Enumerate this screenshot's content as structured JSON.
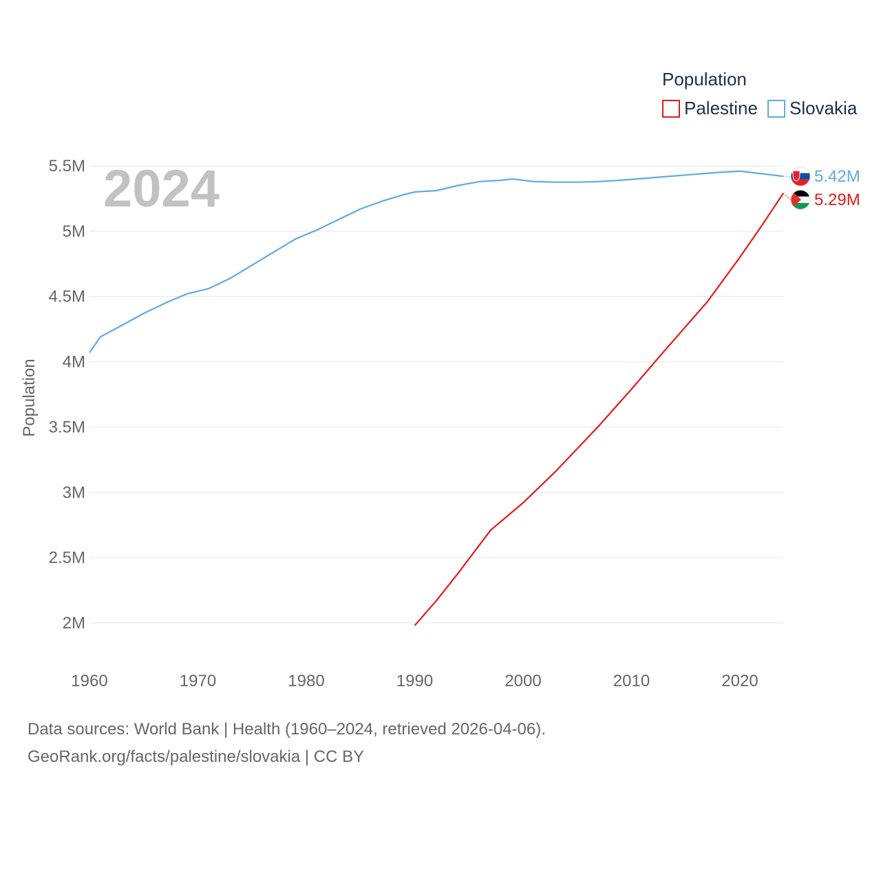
{
  "chart_data": {
    "type": "line",
    "ylabel": "Population",
    "legend": {
      "title": "Population",
      "placement": "top-right"
    },
    "year_label": "2024",
    "ylim": [
      1750000,
      5600000
    ],
    "xlim": [
      1960,
      2024
    ],
    "y_ticks": [
      {
        "value": 2000000,
        "label": "2M"
      },
      {
        "value": 2500000,
        "label": "2.5M"
      },
      {
        "value": 3000000,
        "label": "3M"
      },
      {
        "value": 3500000,
        "label": "3.5M"
      },
      {
        "value": 4000000,
        "label": "4M"
      },
      {
        "value": 4500000,
        "label": "4.5M"
      },
      {
        "value": 5000000,
        "label": "5M"
      },
      {
        "value": 5500000,
        "label": "5.5M"
      }
    ],
    "x_ticks": [
      {
        "value": 1960,
        "label": "1960"
      },
      {
        "value": 1970,
        "label": "1970"
      },
      {
        "value": 1980,
        "label": "1980"
      },
      {
        "value": 1990,
        "label": "1990"
      },
      {
        "value": 2000,
        "label": "2000"
      },
      {
        "value": 2010,
        "label": "2010"
      },
      {
        "value": 2020,
        "label": "2020"
      }
    ],
    "series": [
      {
        "name": "Palestine",
        "color": "#e31a1c",
        "end_label": "5.29M",
        "flag": "palestine-flag",
        "x": [
          1990,
          1992,
          1994,
          1997,
          2000,
          2003,
          2007,
          2010,
          2013,
          2017,
          2020,
          2022,
          2024
        ],
        "values": [
          1980000,
          2170000,
          2380000,
          2710000,
          2920000,
          3160000,
          3510000,
          3790000,
          4080000,
          4460000,
          4800000,
          5040000,
          5290000
        ]
      },
      {
        "name": "Slovakia",
        "color": "#62a8e5",
        "end_label": "5.42M",
        "flag": "slovakia-flag",
        "x": [
          1960,
          1961,
          1963,
          1965,
          1967,
          1969,
          1971,
          1973,
          1975,
          1977,
          1979,
          1981,
          1983,
          1985,
          1987,
          1989,
          1990,
          1992,
          1994,
          1996,
          1998,
          1999,
          2001,
          2003,
          2005,
          2007,
          2009,
          2012,
          2015,
          2018,
          2020,
          2022,
          2024
        ],
        "values": [
          4070000,
          4190000,
          4280000,
          4370000,
          4450000,
          4520000,
          4560000,
          4640000,
          4740000,
          4840000,
          4940000,
          5010000,
          5090000,
          5170000,
          5230000,
          5280000,
          5300000,
          5310000,
          5350000,
          5380000,
          5390000,
          5400000,
          5380000,
          5375000,
          5375000,
          5380000,
          5390000,
          5410000,
          5430000,
          5450000,
          5460000,
          5440000,
          5420000
        ]
      }
    ]
  },
  "footer": {
    "sources": "Data sources: World Bank | Health (1960–2024, retrieved 2026-04-06).",
    "credit": "GeoRank.org/facts/palestine/slovakia | CC BY"
  }
}
